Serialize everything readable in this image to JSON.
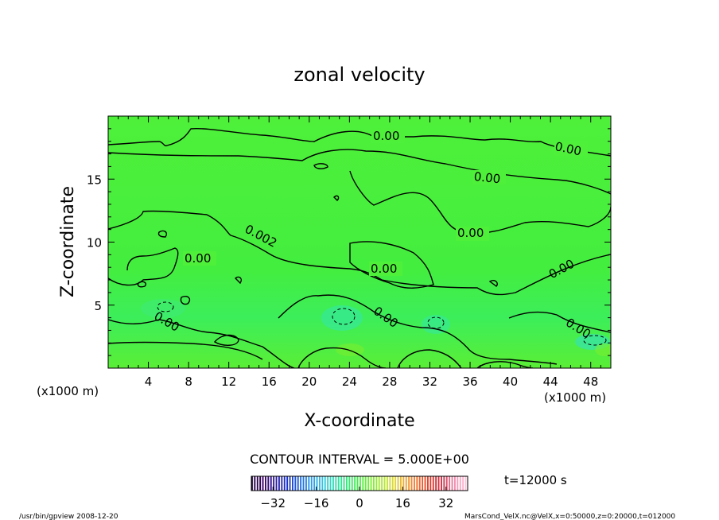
{
  "chart_data": {
    "type": "contour",
    "title": "zonal velocity",
    "xlabel": "X-coordinate",
    "ylabel": "Z-coordinate",
    "xunit_left": "(x1000 m)",
    "xunit_right": "(x1000 m)",
    "xlim": [
      0,
      50
    ],
    "ylim": [
      0,
      20
    ],
    "x_ticks": [
      "4",
      "8",
      "12",
      "16",
      "20",
      "24",
      "28",
      "32",
      "36",
      "40",
      "44",
      "48"
    ],
    "y_ticks": [
      "5",
      "10",
      "15"
    ],
    "contour_labels": [
      "0.00",
      "0.00",
      "0.00",
      "0.00",
      "0.00",
      "0.002",
      "0.00",
      "0.00",
      "0.00",
      "0.00",
      "0.00"
    ],
    "contour_interval_text": "CONTOUR INTERVAL = 5.000E+00",
    "time_text": "t=12000 s",
    "colorbar": {
      "range": [
        -40,
        40
      ],
      "ticks": [
        "-32",
        "-16",
        "0",
        "16",
        "32"
      ],
      "colors": [
        "#1a0033",
        "#3a0066",
        "#2a1aa0",
        "#1a33cc",
        "#1f66e0",
        "#2a9ae8",
        "#33c4e0",
        "#2ee0b0",
        "#33e87a",
        "#44ee44",
        "#7aee33",
        "#b0e833",
        "#e0d833",
        "#f0a030",
        "#ee6a2a",
        "#dd3a2a",
        "#cc2a44",
        "#ee88aa",
        "#ffc0d8"
      ]
    },
    "footer_left": "/usr/bin/gpview   2008-12-20",
    "footer_right": "MarsCond_VelX.nc@VelX,x=0:50000,z=0:20000,t=012000",
    "field_color": "#4cf036"
  }
}
